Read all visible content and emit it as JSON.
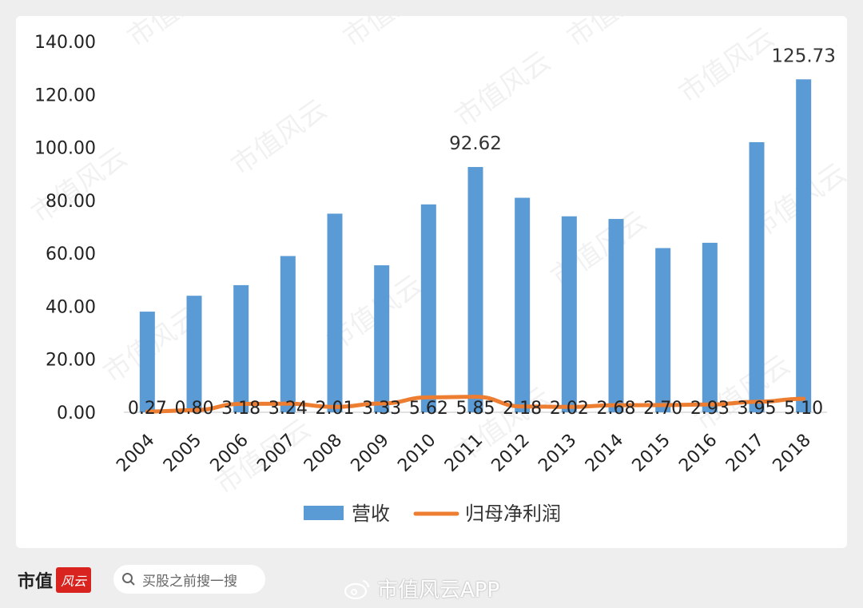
{
  "chart_data": {
    "type": "bar",
    "categories": [
      "2004",
      "2005",
      "2006",
      "2007",
      "2008",
      "2009",
      "2010",
      "2011",
      "2012",
      "2013",
      "2014",
      "2015",
      "2016",
      "2017",
      "2018"
    ],
    "series": [
      {
        "name": "营收",
        "kind": "bar",
        "color": "#5b9bd5",
        "values": [
          38.0,
          44.0,
          48.0,
          59.0,
          75.0,
          55.5,
          78.5,
          92.62,
          81.0,
          74.0,
          73.0,
          62.0,
          64.0,
          102.0,
          125.73
        ],
        "data_labels": {
          "2011": "92.62",
          "2018": "125.73"
        }
      },
      {
        "name": "归母净利润",
        "kind": "line",
        "color": "#ed7d31",
        "values": [
          0.27,
          0.8,
          3.18,
          3.24,
          2.01,
          3.33,
          5.62,
          5.85,
          2.18,
          2.02,
          2.68,
          2.7,
          2.93,
          3.95,
          5.1
        ],
        "data_labels": [
          "0.27",
          "0.80",
          "3.18",
          "3.24",
          "2.01",
          "3.33",
          "5.62",
          "5.85",
          "2.18",
          "2.02",
          "2.68",
          "2.70",
          "2.93",
          "3.95",
          "5.10"
        ]
      }
    ],
    "y_ticks": [
      "0.00",
      "20.00",
      "40.00",
      "60.00",
      "80.00",
      "100.00",
      "120.00",
      "140.00"
    ],
    "ylim": [
      0,
      140
    ],
    "grid": false,
    "legend": "bottom",
    "title": "",
    "xlabel": "",
    "ylabel": ""
  },
  "footer": {
    "brand": "市值",
    "brand_seal": "风云",
    "search_placeholder": "买股之前搜一搜",
    "weibo_tag": "市值风云APP"
  },
  "watermark": "市值风云"
}
